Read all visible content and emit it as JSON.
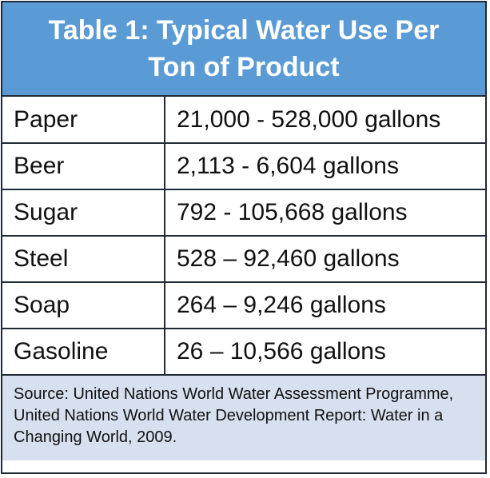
{
  "table": {
    "title_line1": "Table 1: Typical Water Use Per",
    "title_line2": "Ton of Product",
    "rows": [
      {
        "product": "Paper",
        "value": "21,000 - 528,000 gallons"
      },
      {
        "product": "Beer",
        "value": "2,113 - 6,604 gallons"
      },
      {
        "product": "Sugar",
        "value": "792 - 105,668 gallons"
      },
      {
        "product": "Steel",
        "value": "528 – 92,460 gallons"
      },
      {
        "product": "Soap",
        "value": "264 – 9,246 gallons"
      },
      {
        "product": "Gasoline",
        "value": "26 – 10,566 gallons"
      }
    ],
    "source": "Source: United Nations World Water Assessment Programme, United Nations World Water Development Report: Water in a Changing World, 2009."
  },
  "colors": {
    "header_bg": "#5b9bd5",
    "footer_bg": "#d6e0ee",
    "border": "#1f2a36"
  }
}
